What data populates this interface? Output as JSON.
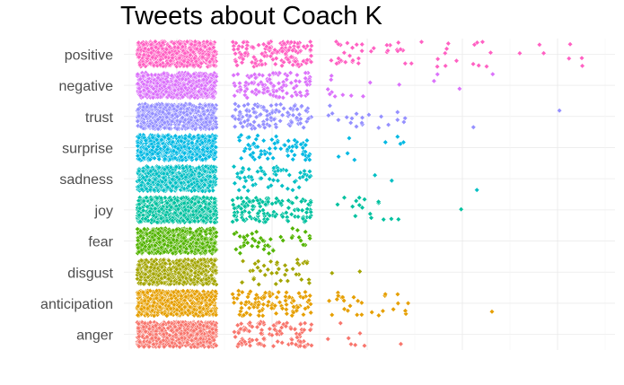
{
  "chart_data": {
    "type": "scatter",
    "title": "Tweets about Coach K",
    "xlabel": "",
    "ylabel": "",
    "x_tick_labels": [],
    "grid": true,
    "legend": "none",
    "jitter": true,
    "categories": [
      "positive",
      "negative",
      "trust",
      "surprise",
      "sadness",
      "joy",
      "fear",
      "disgust",
      "anticipation",
      "anger"
    ],
    "xlim": [
      0,
      5
    ],
    "series": [
      {
        "category": "positive",
        "color": "#FF61C3",
        "groups": [
          {
            "x": 1,
            "n": 600
          },
          {
            "x": 2,
            "n": 150
          },
          {
            "x": 3,
            "n": 32
          },
          {
            "x": 3.5,
            "n": 6
          },
          {
            "x": 4,
            "n": 12
          },
          {
            "x": 4.5,
            "n": 1
          },
          {
            "x": 5,
            "n": 6
          }
        ]
      },
      {
        "category": "negative",
        "color": "#DB72FB",
        "groups": [
          {
            "x": 1,
            "n": 600
          },
          {
            "x": 2,
            "n": 110
          },
          {
            "x": 3,
            "n": 12
          },
          {
            "x": 4,
            "n": 4
          }
        ]
      },
      {
        "category": "trust",
        "color": "#9590FF",
        "groups": [
          {
            "x": 1,
            "n": 600
          },
          {
            "x": 2,
            "n": 110
          },
          {
            "x": 3,
            "n": 20
          },
          {
            "x": 4,
            "n": 1
          },
          {
            "x": 5,
            "n": 1
          }
        ]
      },
      {
        "category": "surprise",
        "color": "#00B9E3",
        "groups": [
          {
            "x": 1,
            "n": 600
          },
          {
            "x": 2,
            "n": 70
          },
          {
            "x": 3,
            "n": 8
          }
        ]
      },
      {
        "category": "sadness",
        "color": "#00BFC4",
        "groups": [
          {
            "x": 1,
            "n": 600
          },
          {
            "x": 2,
            "n": 60
          },
          {
            "x": 3,
            "n": 2
          },
          {
            "x": 4,
            "n": 1
          }
        ]
      },
      {
        "category": "joy",
        "color": "#00C19F",
        "groups": [
          {
            "x": 1,
            "n": 600
          },
          {
            "x": 2,
            "n": 130
          },
          {
            "x": 3,
            "n": 16
          },
          {
            "x": 4,
            "n": 1
          }
        ]
      },
      {
        "category": "fear",
        "color": "#53B400",
        "groups": [
          {
            "x": 1,
            "n": 600
          },
          {
            "x": 2,
            "n": 45
          }
        ]
      },
      {
        "category": "disgust",
        "color": "#A3A500",
        "groups": [
          {
            "x": 1,
            "n": 500
          },
          {
            "x": 2,
            "n": 40
          },
          {
            "x": 3,
            "n": 2
          }
        ]
      },
      {
        "category": "anticipation",
        "color": "#E69F00",
        "groups": [
          {
            "x": 1,
            "n": 600
          },
          {
            "x": 2,
            "n": 100
          },
          {
            "x": 3,
            "n": 26
          },
          {
            "x": 3.5,
            "n": 1
          },
          {
            "x": 4,
            "n": 1
          }
        ]
      },
      {
        "category": "anger",
        "color": "#F8766D",
        "groups": [
          {
            "x": 1,
            "n": 600
          },
          {
            "x": 2,
            "n": 110
          },
          {
            "x": 3,
            "n": 8
          }
        ]
      }
    ]
  }
}
